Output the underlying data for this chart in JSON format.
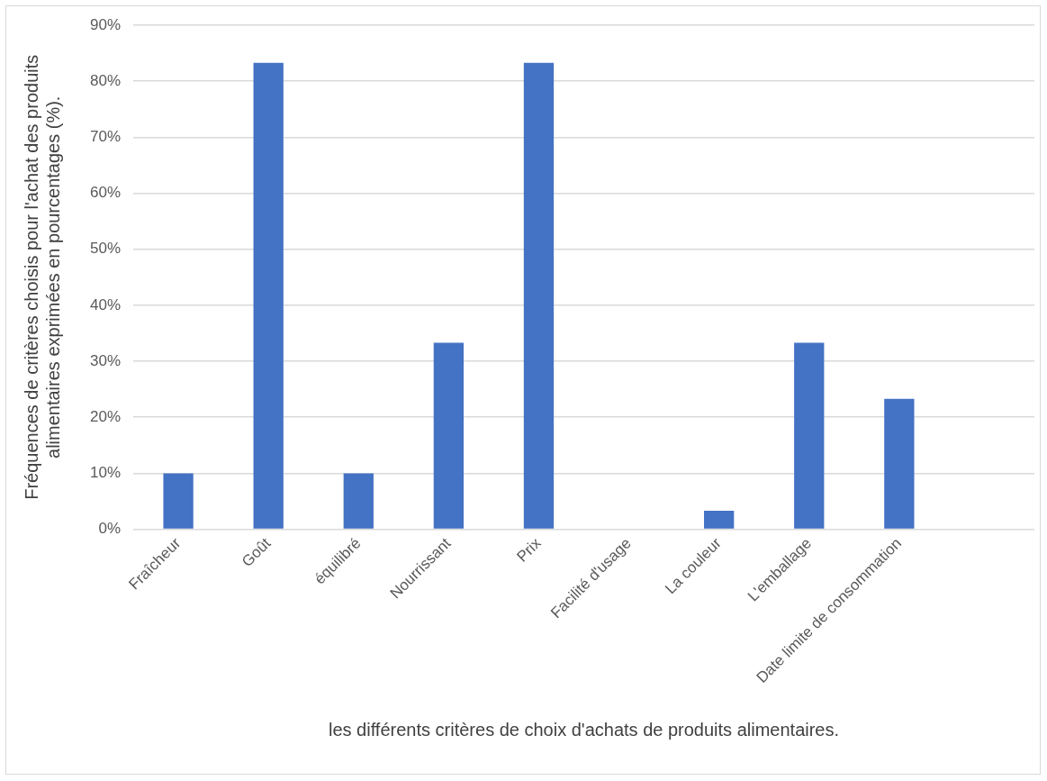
{
  "chart_data": {
    "type": "bar",
    "xlabel": "les différents critères de choix d'achats de produits alimentaires.",
    "ylabel": "Fréquences de critères choisis pour l'achat des produits alimentaires exprimées en pourcentages (%).",
    "categories": [
      "Fraîcheur",
      "Goût",
      "équilibré",
      "Nourrissant",
      "Prix",
      "Facilité d'usage",
      "La couleur",
      "L'emballage",
      "Date limite de consommation",
      null
    ],
    "values": [
      10,
      83.3,
      10,
      33.3,
      83.3,
      0,
      3.3,
      33.3,
      23.3,
      null
    ],
    "color": "#4472c4",
    "ylim": [
      0,
      90
    ],
    "yticks": [
      {
        "value": 0,
        "label": "0%"
      },
      {
        "value": 10,
        "label": "10%"
      },
      {
        "value": 20,
        "label": "20%"
      },
      {
        "value": 30,
        "label": "30%"
      },
      {
        "value": 40,
        "label": "40%"
      },
      {
        "value": 50,
        "label": "50%"
      },
      {
        "value": 60,
        "label": "60%"
      },
      {
        "value": 70,
        "label": "70%"
      },
      {
        "value": 80,
        "label": "80%"
      },
      {
        "value": 90,
        "label": "90%"
      }
    ],
    "grid": "y",
    "legend": false
  }
}
